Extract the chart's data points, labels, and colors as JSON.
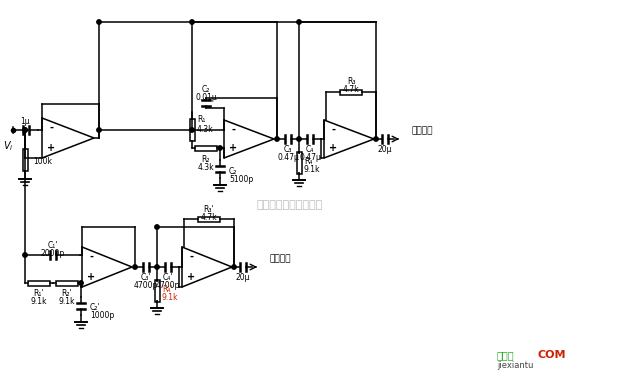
{
  "bg_color": "#ffffff",
  "watermark": "杭州格睿科技有限公司",
  "watermark_color": "#bbbbbb",
  "label_low": "低音功放",
  "label_high": "高音功放",
  "jiexiantu_color": "#22aa22",
  "jiexiantu_text": "接线图",
  "jiexiantu_url": "jiexiantu",
  "com_color": "#cc2200",
  "com_text": "COM"
}
